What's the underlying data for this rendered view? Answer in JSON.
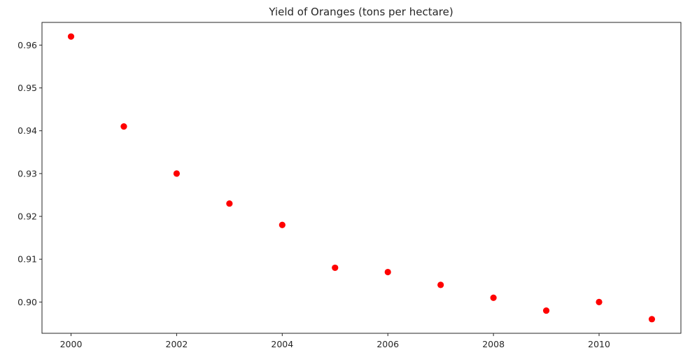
{
  "chart_data": {
    "type": "scatter",
    "title": "Yield of Oranges (tons per hectare)",
    "xlabel": "",
    "ylabel": "",
    "x": [
      2000,
      2001,
      2002,
      2003,
      2004,
      2005,
      2006,
      2007,
      2008,
      2009,
      2010,
      2011
    ],
    "y": [
      0.962,
      0.941,
      0.93,
      0.923,
      0.918,
      0.908,
      0.907,
      0.904,
      0.901,
      0.898,
      0.9,
      0.896
    ],
    "xlim": [
      1999.45,
      2011.55
    ],
    "ylim": [
      0.8927,
      0.9653
    ],
    "xticks": [
      2000,
      2002,
      2004,
      2006,
      2008,
      2010
    ],
    "xtick_labels": [
      "2000",
      "2002",
      "2004",
      "2006",
      "2008",
      "2010"
    ],
    "yticks": [
      0.9,
      0.91,
      0.92,
      0.93,
      0.94,
      0.95,
      0.96
    ],
    "ytick_labels": [
      "0.90",
      "0.91",
      "0.92",
      "0.93",
      "0.94",
      "0.95",
      "0.96"
    ],
    "grid": false,
    "legend": "none",
    "marker_color": "#ff0000"
  }
}
